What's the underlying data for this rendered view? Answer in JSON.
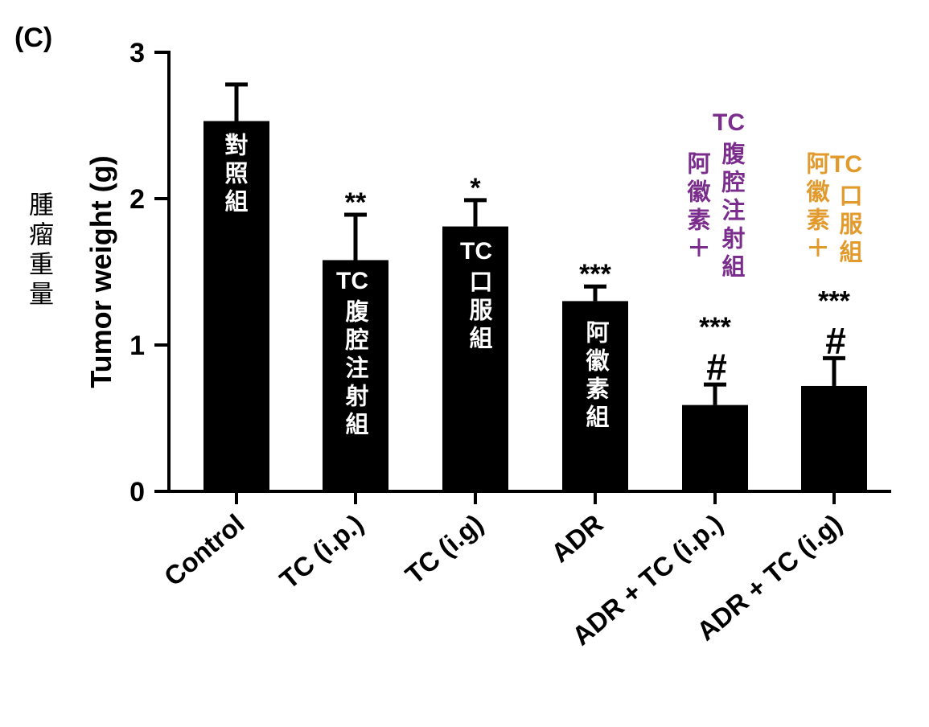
{
  "panel_label": "(C)",
  "cn_ylabel": "腫瘤重量",
  "colors": {
    "bar": "#000000",
    "axis": "#000000",
    "purple": "#7b2d8e",
    "orange": "#e39a2d",
    "inbar_text": "#ffffff"
  },
  "annotations": {
    "control": "對照組",
    "tc_ip_tc": "TC",
    "tc_ip_cn": "腹腔注射組",
    "tc_ig_tc": "TC",
    "tc_ig_cn": "口服組",
    "adr_cn": "阿徽素組",
    "combo_ip_tc": "TC",
    "combo_ip_right": "腹腔注射組",
    "combo_ip_left": "阿徽素＋",
    "combo_ig_tc": "TC",
    "combo_ig_right": "口服組",
    "combo_ig_left": "阿徽素＋"
  },
  "chart_data": {
    "type": "bar",
    "title": "",
    "ylabel": "Tumor weight (g)",
    "xlabel": "",
    "ylim": [
      0,
      3
    ],
    "yticks": [
      0,
      1,
      2,
      3
    ],
    "categories": [
      "Control",
      "TC (i.p.)",
      "TC (i.g)",
      "ADR",
      "ADR + TC (i.p.)",
      "ADR + TC (i.g)"
    ],
    "values": [
      2.53,
      1.58,
      1.81,
      1.3,
      0.59,
      0.72
    ],
    "errors": [
      0.25,
      0.31,
      0.18,
      0.1,
      0.14,
      0.19
    ],
    "significance": [
      "",
      "**",
      "*",
      "***",
      "***",
      "***"
    ],
    "hash": [
      "",
      "",
      "",
      "",
      "#",
      "#"
    ],
    "grid": false,
    "legend": "none"
  }
}
